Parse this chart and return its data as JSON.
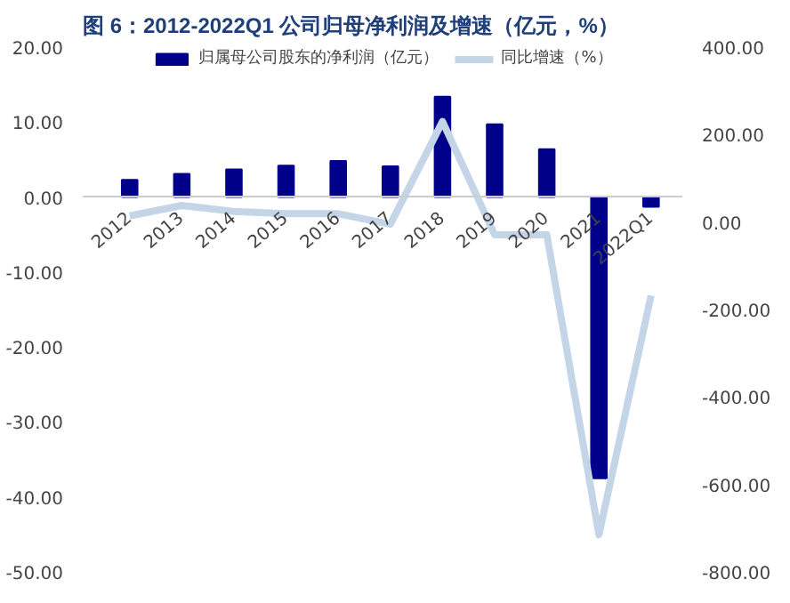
{
  "chart_data": {
    "type": "bar",
    "title": "图 6：2012-2022Q1 公司归母净利润及增速（亿元，%）",
    "categories": [
      "2012",
      "2013",
      "2014",
      "2015",
      "2016",
      "2017",
      "2018",
      "2019",
      "2020",
      "2021",
      "2022Q1"
    ],
    "series": [
      {
        "name": "归属母公司股东的净利润（亿元）",
        "color": "#00008b",
        "values": [
          2.3,
          3.1,
          3.7,
          4.2,
          4.8,
          4.1,
          13.4,
          9.7,
          6.4,
          -37.5,
          -1.3
        ]
      },
      {
        "name": "同比增速（%）",
        "type": "line",
        "axis": "y2",
        "color": "#c5d5e8",
        "values": [
          14,
          38,
          24,
          19,
          19,
          -5,
          230,
          -29,
          -29,
          -715,
          -168
        ]
      }
    ],
    "ylim": [
      -50,
      20
    ],
    "yticks": [
      {
        "value": -50,
        "label": "-50.00"
      },
      {
        "value": -40,
        "label": "-40.00"
      },
      {
        "value": -30,
        "label": "-30.00"
      },
      {
        "value": -20,
        "label": "-20.00"
      },
      {
        "value": -10,
        "label": "-10.00"
      },
      {
        "value": 0,
        "label": "0.00"
      },
      {
        "value": 10,
        "label": "10.00"
      },
      {
        "value": 20,
        "label": "20.00"
      }
    ],
    "y2lim": [
      -800,
      400
    ],
    "y2ticks": [
      {
        "value": -800,
        "label": "-800.00"
      },
      {
        "value": -600,
        "label": "-600.00"
      },
      {
        "value": -400,
        "label": "-400.00"
      },
      {
        "value": -200,
        "label": "-200.00"
      },
      {
        "value": 0,
        "label": "0.00"
      },
      {
        "value": 200,
        "label": "200.00"
      },
      {
        "value": 400,
        "label": "400.00"
      }
    ],
    "legend": "top",
    "grid": false
  }
}
